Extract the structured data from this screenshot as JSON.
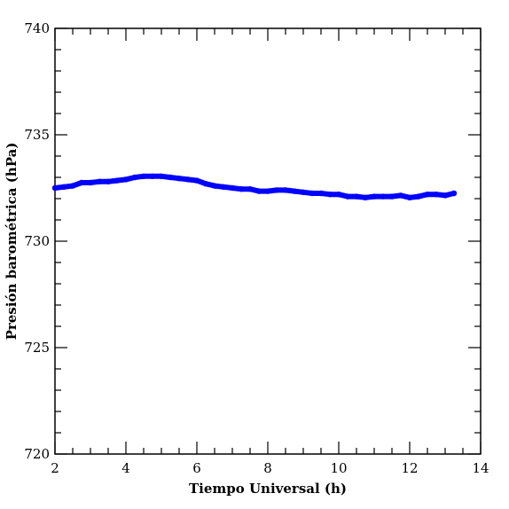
{
  "chart_data": {
    "type": "line",
    "title": "",
    "xlabel": "Tiempo Universal (h)",
    "ylabel": "Presión barométrica (hPa)",
    "xlim": [
      2,
      14
    ],
    "ylim": [
      720,
      740
    ],
    "x_ticks": [
      2,
      4,
      6,
      8,
      10,
      12,
      14
    ],
    "y_ticks": [
      720,
      725,
      730,
      735,
      740
    ],
    "x_tick_labels": [
      "2",
      "4",
      "6",
      "8",
      "10",
      "12",
      "14"
    ],
    "y_tick_labels": [
      "720",
      "725",
      "730",
      "735",
      "740"
    ],
    "grid": false,
    "legend": "none",
    "series": [
      {
        "color": "#0000ff",
        "x": [
          2.0,
          2.25,
          2.5,
          2.75,
          3.0,
          3.25,
          3.5,
          3.75,
          4.0,
          4.25,
          4.5,
          4.75,
          5.0,
          5.25,
          5.5,
          5.75,
          6.0,
          6.25,
          6.5,
          6.75,
          7.0,
          7.25,
          7.5,
          7.75,
          8.0,
          8.25,
          8.5,
          8.75,
          9.0,
          9.25,
          9.5,
          9.75,
          10.0,
          10.25,
          10.5,
          10.75,
          11.0,
          11.25,
          11.5,
          11.75,
          12.0,
          12.25,
          12.5,
          12.75,
          13.0,
          13.25
        ],
        "y": [
          732.5,
          732.55,
          732.6,
          732.75,
          732.75,
          732.8,
          732.8,
          732.85,
          732.9,
          733.0,
          733.05,
          733.05,
          733.05,
          733.0,
          732.95,
          732.9,
          732.85,
          732.7,
          732.6,
          732.55,
          732.5,
          732.45,
          732.45,
          732.35,
          732.35,
          732.4,
          732.4,
          732.35,
          732.3,
          732.25,
          732.25,
          732.2,
          732.2,
          732.1,
          732.1,
          732.05,
          732.1,
          732.1,
          732.1,
          732.15,
          732.05,
          732.1,
          732.2,
          732.2,
          732.15,
          732.25
        ]
      }
    ]
  }
}
